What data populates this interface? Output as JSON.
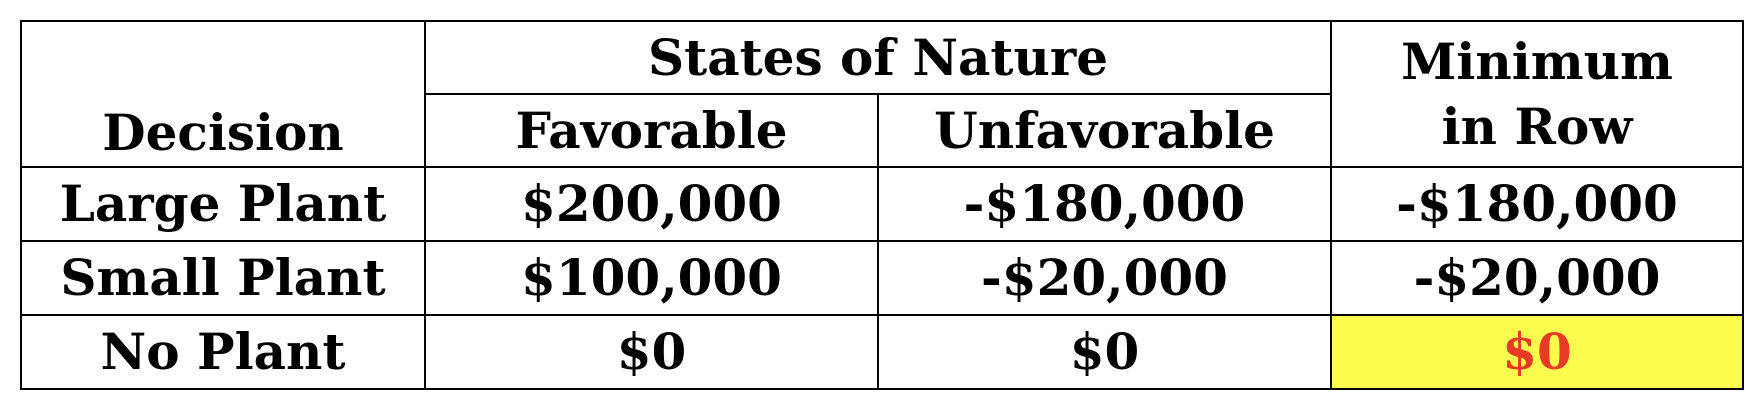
{
  "table": {
    "headers": {
      "decision": "Decision",
      "states_of_nature": "States of Nature",
      "favorable": "Favorable",
      "unfavorable": "Unfavorable",
      "minimum_line1": "Minimum",
      "minimum_line2": "in Row"
    },
    "rows": [
      {
        "decision": "Large Plant",
        "favorable": "$200,000",
        "unfavorable": "-$180,000",
        "minimum": "-$180,000"
      },
      {
        "decision": "Small Plant",
        "favorable": "$100,000",
        "unfavorable": "-$20,000",
        "minimum": "-$20,000"
      },
      {
        "decision": "No Plant",
        "favorable": "$0",
        "unfavorable": "$0",
        "minimum": "$0"
      }
    ],
    "highlight": {
      "row_index": 2,
      "column": "minimum",
      "background_color": "#fdfd50",
      "text_color": "#e83a25"
    }
  }
}
